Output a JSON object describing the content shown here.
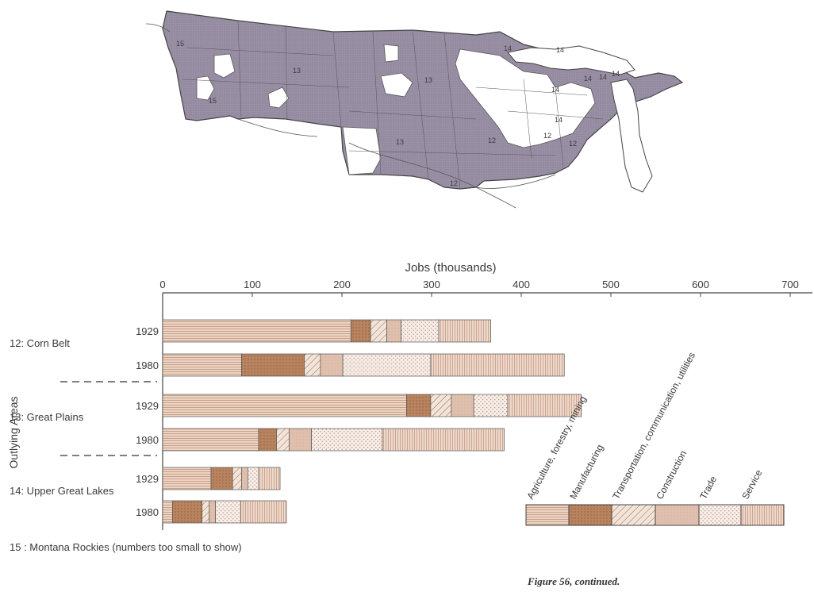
{
  "colors": {
    "agriculture": "#ecd4c4",
    "manufacturing": "#b8835f",
    "transportation": "#f0ddd0",
    "construction": "#dfc0ae",
    "trade": "#f6ece6",
    "service": "#eed8ca",
    "map_fill": "#9a90a6",
    "map_line": "#444444"
  },
  "map": {
    "labels": [
      "15",
      "15",
      "13",
      "13",
      "13",
      "12",
      "12",
      "12",
      "12",
      "14",
      "14",
      "14",
      "14",
      "14",
      "14",
      "14"
    ]
  },
  "chart_data": {
    "type": "bar",
    "orientation": "horizontal",
    "stacked": true,
    "xlabel": "Jobs (thousands)",
    "ylabel": "Outlying Areas",
    "xlim": [
      0,
      700
    ],
    "xticks": [
      0,
      100,
      200,
      300,
      400,
      500,
      600,
      700
    ],
    "groups": [
      {
        "name": "12: Corn Belt",
        "rows": [
          {
            "year": "1929",
            "values": [
              210,
              22,
              18,
              16,
              42,
              58
            ]
          },
          {
            "year": "1980",
            "values": [
              88,
              70,
              18,
              25,
              98,
              149
            ]
          }
        ]
      },
      {
        "name": "13: Great Plains",
        "rows": [
          {
            "year": "1929",
            "values": [
              272,
              27,
              23,
              25,
              38,
              82
            ]
          },
          {
            "year": "1980",
            "values": [
              107,
              20,
              14,
              25,
              79,
              136
            ]
          }
        ]
      },
      {
        "name": "14: Upper Great Lakes",
        "rows": [
          {
            "year": "1929",
            "values": [
              54,
              24,
              10,
              7,
              12,
              24
            ]
          },
          {
            "year": "1980",
            "values": [
              11,
              33,
              8,
              7,
              28,
              51
            ]
          }
        ]
      }
    ],
    "note": "15 : Montana Rockies (numbers too small to show)",
    "legend": {
      "placement": "bottom-right",
      "entries": [
        "Agriculture, forestry, mining",
        "Manufacturing",
        "Transportation, communication, utilities",
        "Construction",
        "Trade",
        "Service"
      ]
    }
  },
  "caption": "Figure 56, continued."
}
